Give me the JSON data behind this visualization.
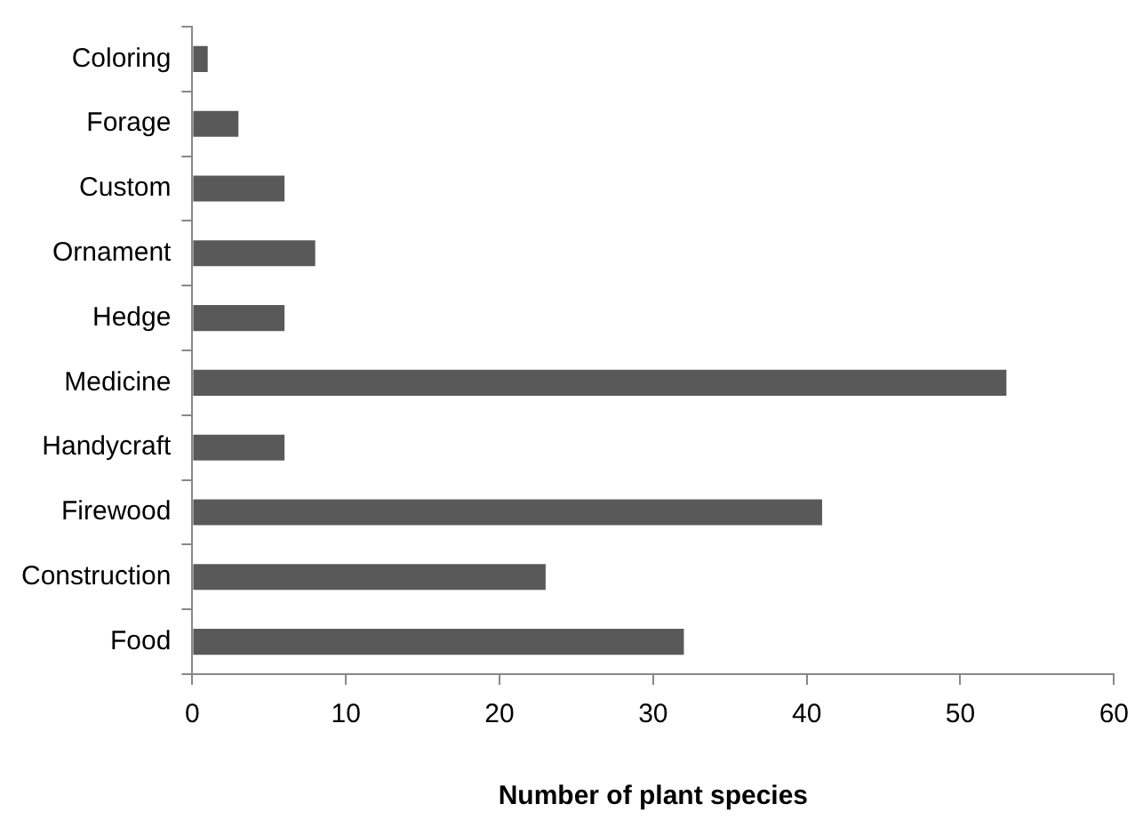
{
  "chart_data": {
    "type": "bar",
    "orientation": "horizontal",
    "xlabel": "Number of plant species",
    "categories": [
      "Coloring",
      "Forage",
      "Custom",
      "Ornament",
      "Hedge",
      "Medicine",
      "Handycraft",
      "Firewood",
      "Construction",
      "Food"
    ],
    "values": [
      1,
      3,
      6,
      8,
      6,
      53,
      6,
      41,
      23,
      32
    ],
    "color": "#595959",
    "xlim": [
      0,
      60
    ],
    "xticks": [
      0,
      10,
      20,
      30,
      40,
      50,
      60
    ],
    "grid": false,
    "legend": false
  }
}
